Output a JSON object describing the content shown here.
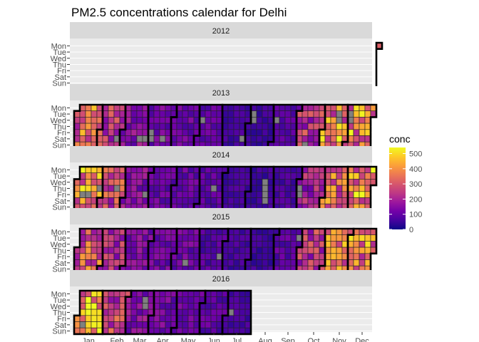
{
  "chart_data": {
    "type": "heatmap",
    "title": "PM2.5 concentrations calendar for Delhi",
    "facets": [
      "2012",
      "2013",
      "2014",
      "2015",
      "2016"
    ],
    "weekdays": [
      "Mon",
      "Tue",
      "Wed",
      "Thu",
      "Fri",
      "Sat",
      "Sun"
    ],
    "months": [
      "Jan",
      "Feb",
      "Mar",
      "Apr",
      "May",
      "Jun",
      "Jul",
      "Aug",
      "Sep",
      "Oct",
      "Nov",
      "Dec"
    ],
    "legend": {
      "title": "conc",
      "ticks": [
        0,
        100,
        200,
        300,
        400,
        500
      ],
      "range": [
        0,
        540
      ],
      "placement": "right"
    },
    "colors": {
      "scale": [
        "#0d0887",
        "#46039f",
        "#7201a8",
        "#9c179e",
        "#bd3786",
        "#d8576b",
        "#ed7953",
        "#fb9f3a",
        "#fdca26",
        "#f0f921"
      ],
      "missing": "#808080",
      "panel_background": "#ebebeb",
      "strip_background": "#d9d9d9",
      "month_outline": "#000000"
    },
    "month_level_estimates": {
      "2012": {
        "Dec": 300
      },
      "2013": {
        "Jan": 330,
        "Feb": 250,
        "Mar": 150,
        "Apr": 120,
        "May": 110,
        "Jun": 100,
        "Jul": 60,
        "Aug": 50,
        "Sep": 80,
        "Oct": 230,
        "Nov": 370,
        "Dec": 370
      },
      "2014": {
        "Jan": 370,
        "Feb": 260,
        "Mar": 150,
        "Apr": 110,
        "May": 100,
        "Jun": 90,
        "Jul": 60,
        "Aug": 50,
        "Sep": 70,
        "Oct": 190,
        "Nov": 330,
        "Dec": 380
      },
      "2015": {
        "Jan": 300,
        "Feb": 210,
        "Mar": 140,
        "Apr": 110,
        "May": 110,
        "Jun": 80,
        "Jul": 60,
        "Aug": 50,
        "Sep": 90,
        "Oct": 230,
        "Nov": 360,
        "Dec": 370
      },
      "2016": {
        "Jan": 400,
        "Feb": 250,
        "Mar": 150,
        "Apr": 120,
        "May": 110,
        "Jun": 90,
        "Jul": 60
      }
    },
    "data_coverage": {
      "2012": [
        "2012-12-31",
        "2012-12-31"
      ],
      "2013": [
        "2013-01-01",
        "2013-12-31"
      ],
      "2014": [
        "2014-01-01",
        "2014-12-31"
      ],
      "2015": [
        "2015-01-01",
        "2015-12-31"
      ],
      "2016": [
        "2016-01-01",
        "2016-07-31"
      ]
    },
    "missing_days": [
      "2013-02-23",
      "2013-03-23",
      "2013-03-30",
      "2013-04-05",
      "2013-04-06",
      "2013-04-20",
      "2013-06-05",
      "2013-07-27",
      "2013-08-06",
      "2013-08-07",
      "2013-09-04",
      "2013-10-13",
      "2013-11-19",
      "2013-11-20",
      "2013-12-03",
      "2013-12-04",
      "2014-01-10",
      "2014-01-17",
      "2014-01-30",
      "2014-02-20",
      "2014-03-28",
      "2014-06-19",
      "2014-08-20",
      "2014-08-21",
      "2014-08-22",
      "2014-08-23",
      "2014-10-02",
      "2014-10-03",
      "2015-05-16",
      "2015-06-26",
      "2015-09-29",
      "2016-01-09",
      "2016-03-22",
      "2016-03-23",
      "2016-07-07"
    ]
  }
}
